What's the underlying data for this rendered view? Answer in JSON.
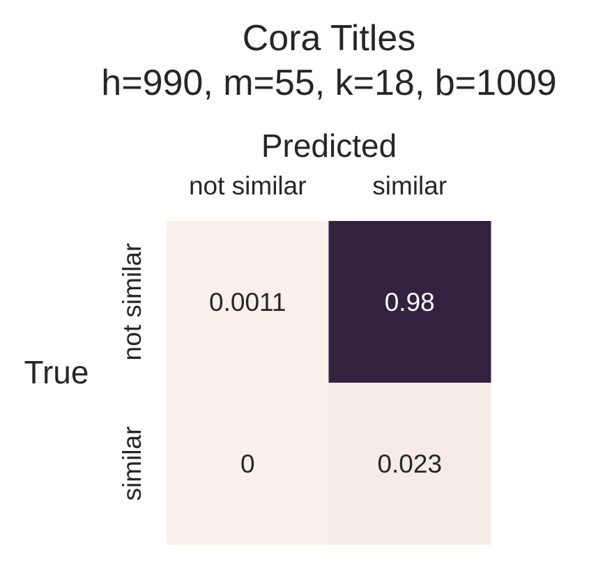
{
  "chart_data": {
    "type": "heatmap",
    "title": [
      "Cora Titles",
      "h=990, m=55, k=18, b=1009"
    ],
    "xlabel": "Predicted",
    "ylabel": "True",
    "x_categories": [
      "not similar",
      "similar"
    ],
    "y_categories": [
      "not similar",
      "similar"
    ],
    "values": [
      [
        0.0011,
        0.98
      ],
      [
        0,
        0.023
      ]
    ],
    "cell_labels": [
      [
        "0.0011",
        "0.98"
      ],
      [
        "0",
        "0.023"
      ]
    ],
    "value_range": [
      0,
      1
    ],
    "colorbar": false,
    "colors": {
      "low": "#faf0eb",
      "high": "#2e1e3b",
      "text_light_bg": "#262626",
      "text_dark_bg": "#ffffff"
    }
  }
}
